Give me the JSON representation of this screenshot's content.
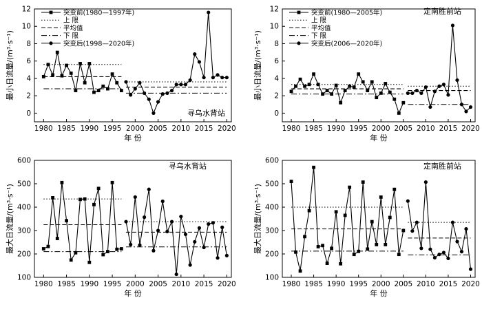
{
  "chart_data": [
    {
      "type": "line",
      "station": "寻乌水背站",
      "ylabel": "最小日流量/(m³·s⁻¹)",
      "xlabel": "年 份",
      "xlim": [
        1978,
        2021
      ],
      "ylim": [
        -1,
        12
      ],
      "xticks": [
        1980,
        1985,
        1990,
        1995,
        2000,
        2005,
        2010,
        2015,
        2020
      ],
      "yticks": [
        0,
        2,
        4,
        6,
        8,
        10,
        12
      ],
      "grid": false,
      "legend_position": "top-left",
      "legend": {
        "before": "突变前(1980—1997年)",
        "upper": "上  限",
        "mean": "平均值",
        "lower": "下  限",
        "after": "突变后(1998—2020年)"
      },
      "before": {
        "x": [
          1980,
          1981,
          1982,
          1983,
          1984,
          1985,
          1986,
          1987,
          1988,
          1989,
          1990,
          1991,
          1992,
          1993,
          1994,
          1995,
          1996,
          1997
        ],
        "y": [
          4.2,
          5.6,
          4.4,
          7.0,
          4.3,
          5.5,
          4.6,
          2.6,
          5.7,
          3.5,
          5.7,
          2.4,
          2.6,
          3.1,
          2.8,
          4.5,
          3.5,
          2.6
        ],
        "upper": 5.6,
        "mean": 4.2,
        "lower": 2.8
      },
      "after": {
        "x": [
          1998,
          1999,
          2000,
          2001,
          2002,
          2003,
          2004,
          2005,
          2006,
          2007,
          2008,
          2009,
          2010,
          2011,
          2012,
          2013,
          2014,
          2015,
          2016,
          2017,
          2018,
          2019,
          2020
        ],
        "y": [
          3.6,
          2.1,
          2.8,
          3.5,
          2.3,
          1.6,
          0.0,
          1.3,
          2.2,
          2.3,
          2.6,
          3.3,
          3.3,
          3.3,
          3.8,
          6.8,
          5.9,
          4.1,
          11.6,
          4.1,
          4.4,
          4.1,
          4.1
        ],
        "upper": 3.6,
        "mean": 3.0,
        "lower": 2.3
      }
    },
    {
      "type": "line",
      "station": "定南胜前站",
      "ylabel": "最小日流量/(m³·s⁻¹)",
      "xlabel": "年 份",
      "xlim": [
        1978,
        2021
      ],
      "ylim": [
        -1,
        12
      ],
      "xticks": [
        1980,
        1985,
        1990,
        1995,
        2000,
        2005,
        2010,
        2015,
        2020
      ],
      "yticks": [
        0,
        2,
        4,
        6,
        8,
        10,
        12
      ],
      "grid": false,
      "legend_position": "top-left",
      "legend": {
        "before": "突变前(1980—2005年)",
        "upper": "上  限",
        "mean": "平均值",
        "lower": "下  限",
        "after": "突变后(2006—2020年)"
      },
      "before": {
        "x": [
          1980,
          1981,
          1982,
          1983,
          1984,
          1985,
          1986,
          1987,
          1988,
          1989,
          1990,
          1991,
          1992,
          1993,
          1994,
          1995,
          1996,
          1997,
          1998,
          1999,
          2000,
          2001,
          2002,
          2003,
          2004,
          2005
        ],
        "y": [
          2.5,
          3.1,
          3.9,
          3.1,
          3.3,
          4.5,
          3.3,
          2.2,
          2.6,
          2.2,
          3.2,
          1.2,
          2.6,
          3.1,
          3.0,
          4.5,
          3.6,
          2.6,
          3.6,
          1.8,
          2.3,
          3.4,
          2.4,
          1.6,
          0.0,
          1.2
        ],
        "upper": 3.3,
        "mean": 2.8,
        "lower": 2.2
      },
      "after": {
        "x": [
          2006,
          2007,
          2008,
          2009,
          2010,
          2011,
          2012,
          2013,
          2014,
          2015,
          2016,
          2017,
          2018,
          2019,
          2020
        ],
        "y": [
          2.3,
          2.3,
          2.6,
          2.3,
          3.0,
          0.7,
          2.5,
          3.1,
          3.3,
          2.1,
          10.1,
          3.8,
          1.0,
          0.2,
          0.7
        ],
        "upper": 3.1,
        "mean": 2.6,
        "lower": 1.0
      }
    },
    {
      "type": "line",
      "station": "寻乌水背站",
      "ylabel": "最大日流量/(m³·s⁻¹)",
      "xlabel": "年 份",
      "xlim": [
        1978,
        2021
      ],
      "ylim": [
        100,
        600
      ],
      "xticks": [
        1980,
        1985,
        1990,
        1995,
        2000,
        2005,
        2010,
        2015,
        2020
      ],
      "yticks": [
        100,
        200,
        300,
        400,
        500,
        600
      ],
      "grid": false,
      "before": {
        "x": [
          1980,
          1981,
          1982,
          1983,
          1984,
          1985,
          1986,
          1987,
          1988,
          1989,
          1990,
          1991,
          1992,
          1993,
          1994,
          1995,
          1996,
          1997
        ],
        "y": [
          222,
          232,
          440,
          266,
          505,
          342,
          174,
          205,
          433,
          435,
          164,
          411,
          480,
          197,
          210,
          505,
          220,
          222
        ],
        "upper": 435,
        "mean": 325,
        "lower": 210
      },
      "after": {
        "x": [
          1998,
          1999,
          2000,
          2001,
          2002,
          2003,
          2004,
          2005,
          2006,
          2007,
          2008,
          2009,
          2010,
          2011,
          2012,
          2013,
          2014,
          2015,
          2016,
          2017,
          2018,
          2019,
          2020
        ],
        "y": [
          338,
          240,
          443,
          238,
          357,
          476,
          214,
          300,
          425,
          296,
          338,
          113,
          360,
          284,
          153,
          252,
          311,
          228,
          328,
          333,
          183,
          314,
          193
        ],
        "upper": 338,
        "mean": 293,
        "lower": 230
      }
    },
    {
      "type": "line",
      "station": "定南胜前站",
      "ylabel": "最大日流量/(m³·s⁻¹)",
      "xlabel": "年 份",
      "xlim": [
        1978,
        2021
      ],
      "ylim": [
        100,
        600
      ],
      "xticks": [
        1980,
        1985,
        1990,
        1995,
        2000,
        2005,
        2010,
        2015,
        2020
      ],
      "yticks": [
        100,
        200,
        300,
        400,
        500,
        600
      ],
      "grid": false,
      "before": {
        "x": [
          1980,
          1981,
          1982,
          1983,
          1984,
          1985,
          1986,
          1987,
          1988,
          1989,
          1990,
          1991,
          1992,
          1993,
          1994,
          1995,
          1996,
          1997,
          1998,
          1999,
          2000,
          2001,
          2002,
          2003,
          2004,
          2005
        ],
        "y": [
          510,
          208,
          127,
          274,
          385,
          570,
          231,
          236,
          160,
          224,
          380,
          158,
          365,
          485,
          198,
          211,
          507,
          221,
          338,
          240,
          443,
          240,
          356,
          476,
          198,
          300
        ],
        "upper": 400,
        "mean": 307,
        "lower": 212
      },
      "after": {
        "x": [
          2006,
          2007,
          2008,
          2009,
          2010,
          2011,
          2012,
          2013,
          2014,
          2015,
          2016,
          2017,
          2018,
          2019,
          2020
        ],
        "y": [
          426,
          298,
          335,
          224,
          507,
          220,
          184,
          198,
          206,
          181,
          335,
          253,
          210,
          307,
          135
        ],
        "upper": 335,
        "mean": 268,
        "lower": 196
      }
    }
  ]
}
